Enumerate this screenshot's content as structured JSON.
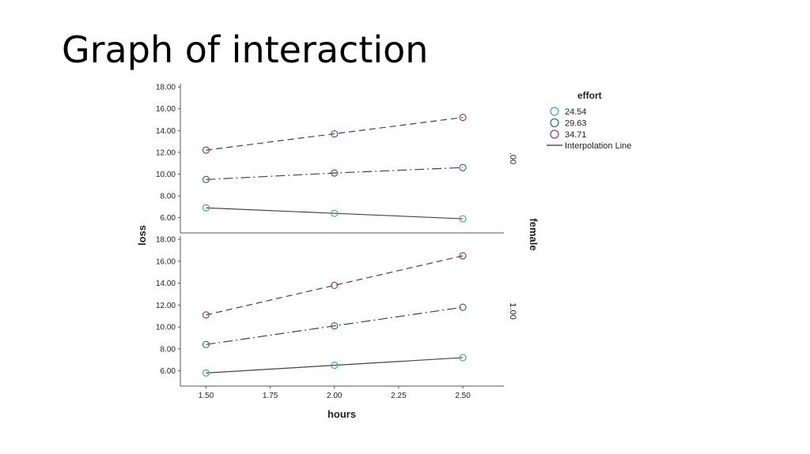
{
  "page": {
    "title": "Graph of interaction"
  },
  "chart_data": {
    "type": "line",
    "x_label": "hours",
    "y_label": "loss",
    "panel_variable": "female",
    "x_ticks": [
      "1.50",
      "1.75",
      "2.00",
      "2.25",
      "2.50"
    ],
    "xlim": [
      1.4,
      2.66
    ],
    "y_ticks": [
      "6.00",
      "8.00",
      "10.00",
      "12.00",
      "14.00",
      "16.00",
      "18.00"
    ],
    "ylim": [
      4.6,
      18.3
    ],
    "legend": {
      "title": "effort",
      "position": "right",
      "interpolation_label": "Interpolation Line"
    },
    "x": [
      1.5,
      2.0,
      2.5
    ],
    "series_styles": [
      {
        "name": "24.54",
        "color": "#4aa3c4",
        "dash": "none"
      },
      {
        "name": "29.63",
        "color": "#2e7a5a",
        "dash": "12 4 2 4"
      },
      {
        "name": "34.71",
        "color": "#a0405e",
        "dash": "8 5"
      }
    ],
    "panels": [
      {
        "label": ".00",
        "series": [
          {
            "name": "24.54",
            "values": [
              6.9,
              6.4,
              5.9
            ]
          },
          {
            "name": "29.63",
            "values": [
              9.5,
              10.1,
              10.6
            ]
          },
          {
            "name": "34.71",
            "values": [
              12.2,
              13.7,
              15.2
            ]
          }
        ]
      },
      {
        "label": "1.00",
        "series": [
          {
            "name": "24.54",
            "values": [
              5.8,
              6.5,
              7.2
            ]
          },
          {
            "name": "29.63",
            "values": [
              8.4,
              10.1,
              11.8
            ]
          },
          {
            "name": "34.71",
            "values": [
              11.1,
              13.8,
              16.5
            ]
          }
        ]
      }
    ]
  }
}
